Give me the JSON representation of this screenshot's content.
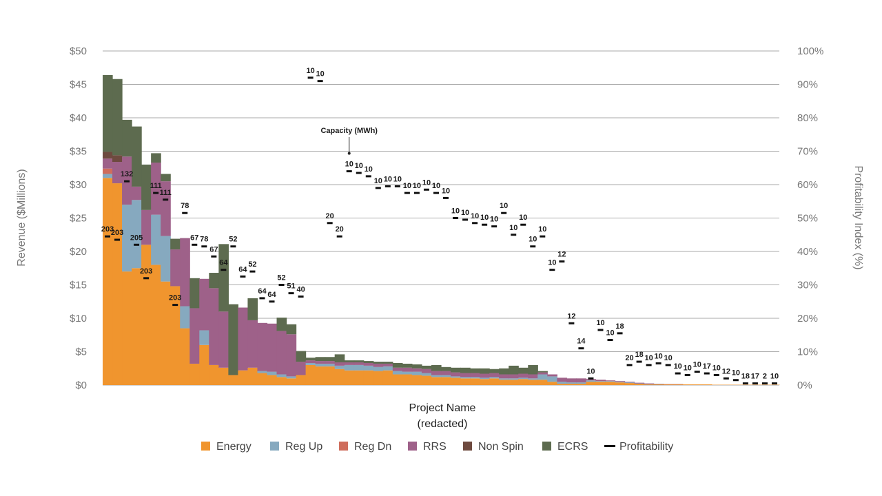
{
  "chart_data": {
    "type": "bar",
    "stacked": true,
    "title": "",
    "xlabel": [
      "Project Name",
      "(redacted)"
    ],
    "ylabel": "Revenue ($Millions)",
    "y2label": "Profitability Index (%)",
    "ylim": [
      0,
      50
    ],
    "y2lim": [
      0,
      100
    ],
    "yticks": [
      "$0",
      "$5",
      "$10",
      "$15",
      "$20",
      "$25",
      "$30",
      "$35",
      "$40",
      "$45",
      "$50"
    ],
    "y2ticks": [
      "0%",
      "10%",
      "20%",
      "30%",
      "40%",
      "50%",
      "60%",
      "70%",
      "80%",
      "90%",
      "100%"
    ],
    "legend_position": "bottom",
    "annotation": "Capacity (MWh)",
    "annotation_target_index": 25,
    "series": [
      {
        "name": "Energy",
        "color": "#f0952e",
        "values": [
          31,
          30.2,
          17,
          17.5,
          21,
          18,
          15.5,
          14.8,
          8.5,
          3.2,
          6,
          3,
          2.6,
          1.5,
          2.2,
          2.6,
          1.8,
          1.5,
          1.2,
          1,
          1.5,
          3,
          2.8,
          2.8,
          2.4,
          2.2,
          2.2,
          2.2,
          2.1,
          2.2,
          1.6,
          1.6,
          1.5,
          1.4,
          1.2,
          1.2,
          1.1,
          1,
          1,
          0.9,
          1,
          0.8,
          0.8,
          0.9,
          0.8,
          0.8,
          0.5,
          0.2,
          0.2,
          0.2,
          0.5,
          0.5,
          0.5,
          0.4,
          0.3,
          0.2,
          0.1,
          0.1,
          0.1,
          0.1,
          0.1,
          0.1,
          0.1,
          0.05,
          0.05,
          0.05,
          0.05,
          0.05,
          0.05,
          0.05
        ]
      },
      {
        "name": "Reg Up",
        "color": "#86a9bf",
        "values": [
          0.6,
          0,
          10,
          10.2,
          0,
          7.5,
          6.8,
          0,
          3.3,
          0,
          2.2,
          0,
          0,
          0,
          0,
          0,
          0.3,
          0.5,
          0.4,
          0.3,
          0,
          0.3,
          0.4,
          0.4,
          0.5,
          0.8,
          0.8,
          0.7,
          0.6,
          0.6,
          0.5,
          0.4,
          0.5,
          0.4,
          0.3,
          0.3,
          0.2,
          0.2,
          0.2,
          0.2,
          0.2,
          0.2,
          0.2,
          0.2,
          0.2,
          0.8,
          0.8,
          0.3,
          0.2,
          0.2,
          0.2,
          0.1,
          0.1,
          0.1,
          0.1,
          0.05,
          0.05,
          0.05,
          0,
          0,
          0,
          0,
          0,
          0,
          0,
          0,
          0,
          0,
          0,
          0
        ]
      },
      {
        "name": "Reg Dn",
        "color": "#cf6d5c",
        "values": [
          0.8,
          0,
          0,
          0,
          0,
          0,
          0,
          0,
          0,
          0,
          0,
          0,
          0,
          0,
          0,
          0,
          0,
          0,
          0,
          0,
          0,
          0,
          0,
          0,
          0,
          0,
          0,
          0,
          0,
          0,
          0,
          0,
          0,
          0,
          0,
          0,
          0,
          0,
          0,
          0,
          0,
          0,
          0,
          0,
          0,
          0,
          0,
          0,
          0,
          0,
          0,
          0,
          0,
          0,
          0,
          0,
          0,
          0,
          0,
          0,
          0,
          0,
          0,
          0,
          0,
          0,
          0,
          0,
          0,
          0
        ]
      },
      {
        "name": "RRS",
        "color": "#9e6189",
        "values": [
          1.5,
          3.2,
          7.2,
          2,
          5.2,
          7.8,
          8.2,
          5.5,
          10.2,
          8.3,
          7.7,
          11.5,
          8.4,
          0,
          9.4,
          7.1,
          7.2,
          7.2,
          6.5,
          6.3,
          2,
          0.4,
          0.4,
          0.4,
          0.5,
          0.4,
          0.4,
          0.4,
          0.5,
          0.4,
          0.5,
          0.6,
          0.5,
          0.6,
          0.6,
          0.6,
          0.6,
          0.6,
          0.6,
          0.6,
          0.6,
          0.6,
          0.6,
          0.6,
          0.6,
          0.3,
          0.3,
          0.6,
          0.6,
          0.6,
          0.2,
          0.2,
          0.1,
          0.1,
          0.1,
          0.1,
          0.1,
          0.05,
          0.05,
          0.05,
          0,
          0,
          0,
          0,
          0,
          0,
          0,
          0,
          0,
          0
        ]
      },
      {
        "name": "Non Spin",
        "color": "#6e4a3f",
        "values": [
          1,
          1,
          0,
          0,
          0,
          0,
          0,
          0,
          0,
          0,
          0,
          0,
          0,
          0,
          0,
          0,
          0,
          0,
          0,
          0,
          0,
          0,
          0,
          0,
          0,
          0,
          0,
          0,
          0,
          0,
          0,
          0,
          0,
          0,
          0,
          0,
          0,
          0,
          0,
          0,
          0,
          0,
          0,
          0,
          0,
          0,
          0,
          0,
          0,
          0,
          0,
          0,
          0,
          0,
          0,
          0,
          0,
          0,
          0,
          0,
          0,
          0,
          0,
          0,
          0,
          0,
          0,
          0,
          0,
          0
        ]
      },
      {
        "name": "ECRS",
        "color": "#5d6b4f",
        "values": [
          11.5,
          11.4,
          5.5,
          9,
          6.8,
          1.4,
          1.1,
          1.6,
          0,
          4.5,
          0,
          2.3,
          10.1,
          10.6,
          0,
          3.3,
          0,
          0,
          2,
          1.5,
          1.6,
          0.4,
          0.6,
          0.6,
          1.2,
          0.3,
          0.3,
          0.3,
          0.3,
          0.3,
          0.7,
          0.6,
          0.6,
          0.5,
          0.9,
          0.6,
          0.7,
          0.8,
          0.7,
          0.8,
          0.6,
          0.9,
          1.3,
          0.9,
          1.4,
          0.2,
          0,
          0,
          0,
          0,
          0,
          0,
          0,
          0,
          0,
          0,
          0,
          0,
          0,
          0,
          0,
          0,
          0,
          0,
          0,
          0,
          0,
          0,
          0,
          0
        ]
      },
      {
        "name": "Profitability",
        "color": "#111111",
        "type": "marker",
        "values": [
          44.5,
          43.5,
          61,
          42,
          32,
          57.5,
          55.5,
          24,
          51.5,
          42,
          41.5,
          38.5,
          34.5,
          41.5,
          32.5,
          34,
          26,
          25,
          30,
          27.5,
          26.5,
          92,
          91,
          48.5,
          44.5,
          64,
          63.5,
          62.5,
          59,
          59.5,
          59.5,
          57.5,
          57.5,
          58.5,
          57.5,
          56,
          50,
          49.5,
          48.5,
          48,
          47.5,
          51.5,
          45,
          48,
          41.5,
          44.5,
          34.5,
          37,
          18.5,
          11,
          2,
          16.5,
          13.5,
          15.5,
          6,
          7,
          6,
          6.5,
          6,
          3.5,
          3,
          4,
          3.5,
          3,
          2,
          1.5,
          0.5,
          0.5,
          0.5,
          0.5
        ]
      }
    ],
    "capacity_labels": [
      "203",
      "203",
      "132",
      "205",
      "203",
      "111",
      "111",
      "203",
      "78",
      "67",
      "78",
      "67",
      "64",
      "52",
      "64",
      "52",
      "64",
      "64",
      "52",
      "51",
      "40",
      "10",
      "10",
      "20",
      "20",
      "10",
      "10",
      "10",
      "10",
      "10",
      "10",
      "10",
      "10",
      "10",
      "10",
      "10",
      "10",
      "10",
      "10",
      "10",
      "10",
      "10",
      "10",
      "10",
      "10",
      "10",
      "10",
      "12",
      "12",
      "14",
      "10",
      "10",
      "10",
      "18",
      "20",
      "18",
      "10",
      "10",
      "10",
      "10",
      "10",
      "10",
      "17",
      "10",
      "12",
      "10",
      "18",
      "17",
      "2",
      "10"
    ]
  }
}
